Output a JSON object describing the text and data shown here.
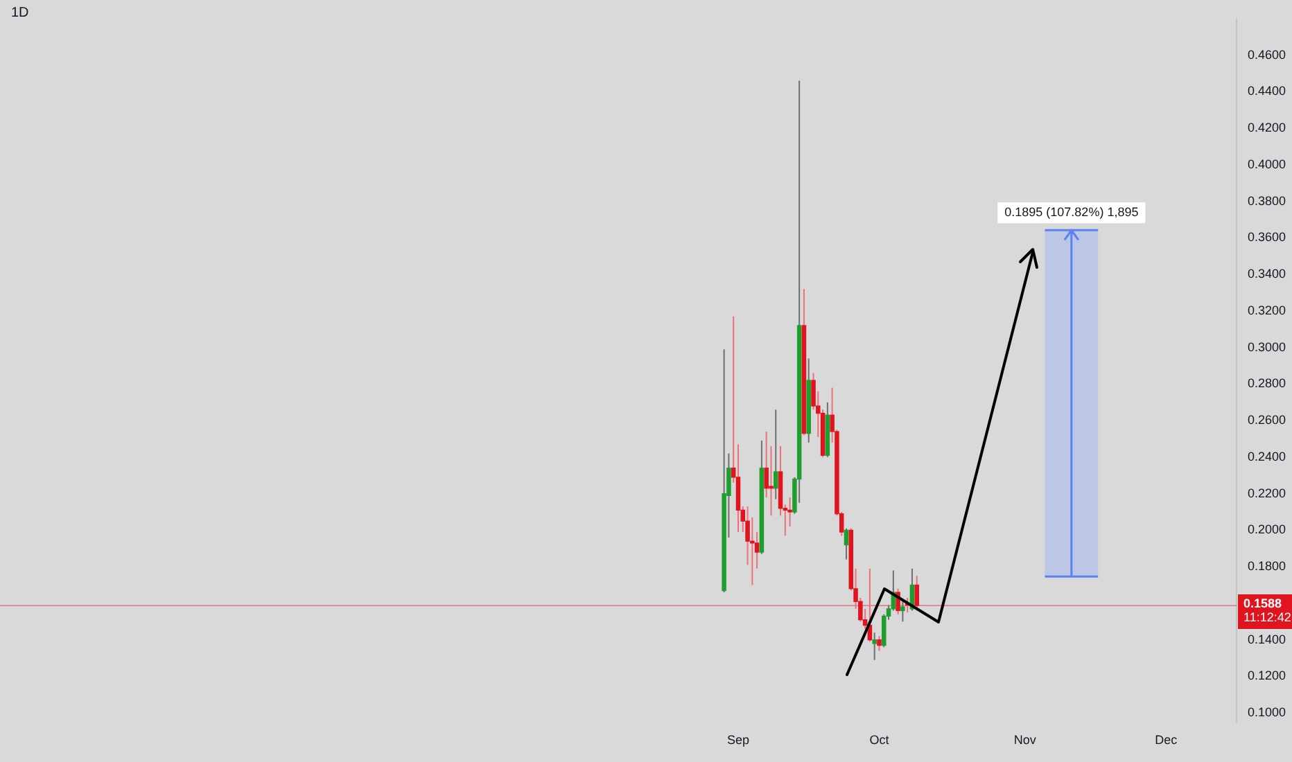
{
  "chart_data": {
    "type": "candlestick",
    "title": "1D",
    "x": [
      "--08-29",
      "--08-30",
      "--08-31",
      "--09-01",
      "--09-02",
      "--09-03",
      "--09-04",
      "--09-05",
      "--09-06",
      "--09-07",
      "--09-08",
      "--09-09",
      "--09-10",
      "--09-11",
      "--09-12",
      "--09-13",
      "--09-14",
      "--09-15",
      "--09-16",
      "--09-17",
      "--09-18",
      "--09-19",
      "--09-20",
      "--09-21",
      "--09-22",
      "--09-23",
      "--09-24",
      "--09-25",
      "--09-26",
      "--09-27",
      "--09-28",
      "--09-29",
      "--09-30",
      "--10-01",
      "--10-02",
      "--10-03",
      "--10-04",
      "--10-05",
      "--10-06",
      "--10-07",
      "--10-08",
      "--10-09"
    ],
    "ohlc": [
      [
        0.167,
        0.299,
        0.166,
        0.22
      ],
      [
        0.219,
        0.242,
        0.196,
        0.234
      ],
      [
        0.234,
        0.317,
        0.226,
        0.229
      ],
      [
        0.229,
        0.247,
        0.199,
        0.211
      ],
      [
        0.211,
        0.213,
        0.199,
        0.205
      ],
      [
        0.205,
        0.213,
        0.181,
        0.194
      ],
      [
        0.194,
        0.207,
        0.17,
        0.193
      ],
      [
        0.193,
        0.199,
        0.179,
        0.188
      ],
      [
        0.188,
        0.249,
        0.187,
        0.234
      ],
      [
        0.234,
        0.254,
        0.218,
        0.223
      ],
      [
        0.224,
        0.246,
        0.208,
        0.223
      ],
      [
        0.223,
        0.266,
        0.217,
        0.232
      ],
      [
        0.232,
        0.246,
        0.208,
        0.212
      ],
      [
        0.212,
        0.214,
        0.197,
        0.211
      ],
      [
        0.211,
        0.218,
        0.202,
        0.21
      ],
      [
        0.21,
        0.229,
        0.209,
        0.228
      ],
      [
        0.228,
        0.446,
        0.215,
        0.312
      ],
      [
        0.312,
        0.332,
        0.252,
        0.253
      ],
      [
        0.253,
        0.294,
        0.248,
        0.282
      ],
      [
        0.282,
        0.286,
        0.266,
        0.268
      ],
      [
        0.268,
        0.276,
        0.251,
        0.264
      ],
      [
        0.264,
        0.266,
        0.24,
        0.241
      ],
      [
        0.241,
        0.27,
        0.24,
        0.263
      ],
      [
        0.263,
        0.278,
        0.248,
        0.254
      ],
      [
        0.254,
        0.255,
        0.208,
        0.209
      ],
      [
        0.209,
        0.21,
        0.197,
        0.199
      ],
      [
        0.192,
        0.201,
        0.184,
        0.2
      ],
      [
        0.2,
        0.201,
        0.167,
        0.168
      ],
      [
        0.168,
        0.179,
        0.157,
        0.161
      ],
      [
        0.161,
        0.163,
        0.15,
        0.151
      ],
      [
        0.151,
        0.157,
        0.146,
        0.148
      ],
      [
        0.148,
        0.179,
        0.139,
        0.14
      ],
      [
        0.138,
        0.144,
        0.129,
        0.14
      ],
      [
        0.14,
        0.142,
        0.134,
        0.137
      ],
      [
        0.137,
        0.154,
        0.136,
        0.153
      ],
      [
        0.153,
        0.159,
        0.151,
        0.157
      ],
      [
        0.157,
        0.178,
        0.156,
        0.166
      ],
      [
        0.166,
        0.168,
        0.154,
        0.156
      ],
      [
        0.156,
        0.162,
        0.15,
        0.158
      ],
      [
        0.16,
        0.163,
        0.155,
        0.159
      ],
      [
        0.157,
        0.179,
        0.156,
        0.17
      ],
      [
        0.17,
        0.175,
        0.156,
        0.1588
      ]
    ],
    "xlim": [
      "--03-28",
      "--12-16"
    ],
    "xticks": [
      {
        "value": "--09-01",
        "label": "Sep"
      },
      {
        "value": "--10-01",
        "label": "Oct"
      },
      {
        "value": "--11-01",
        "label": "Nov"
      },
      {
        "value": "--12-01",
        "label": "Dec"
      }
    ],
    "ylim": [
      0.095,
      0.48
    ],
    "yticks": [
      {
        "value": 0.1,
        "label": "0.1000"
      },
      {
        "value": 0.12,
        "label": "0.1200"
      },
      {
        "value": 0.14,
        "label": "0.1400"
      },
      {
        "value": 0.18,
        "label": "0.1800"
      },
      {
        "value": 0.2,
        "label": "0.2000"
      },
      {
        "value": 0.22,
        "label": "0.2200"
      },
      {
        "value": 0.24,
        "label": "0.2400"
      },
      {
        "value": 0.26,
        "label": "0.2600"
      },
      {
        "value": 0.28,
        "label": "0.2800"
      },
      {
        "value": 0.3,
        "label": "0.3000"
      },
      {
        "value": 0.32,
        "label": "0.3200"
      },
      {
        "value": 0.34,
        "label": "0.3400"
      },
      {
        "value": 0.36,
        "label": "0.3600"
      },
      {
        "value": 0.38,
        "label": "0.3800"
      },
      {
        "value": 0.4,
        "label": "0.4000"
      },
      {
        "value": 0.42,
        "label": "0.4200"
      },
      {
        "value": 0.44,
        "label": "0.4400"
      },
      {
        "value": 0.46,
        "label": "0.4600"
      }
    ],
    "ref_lines": [
      {
        "axis": "y",
        "value": 0.1588,
        "label": "0.1588",
        "color": "#e0141e"
      }
    ],
    "bands": [
      {
        "axis": "y",
        "from": 0.1747,
        "to": 0.3642,
        "label": "0.1895 (107.82%) 1,895",
        "color": "#bcc7e6"
      }
    ],
    "annotations": [
      "11:12:42"
    ],
    "grid": false,
    "legend": false
  }
}
